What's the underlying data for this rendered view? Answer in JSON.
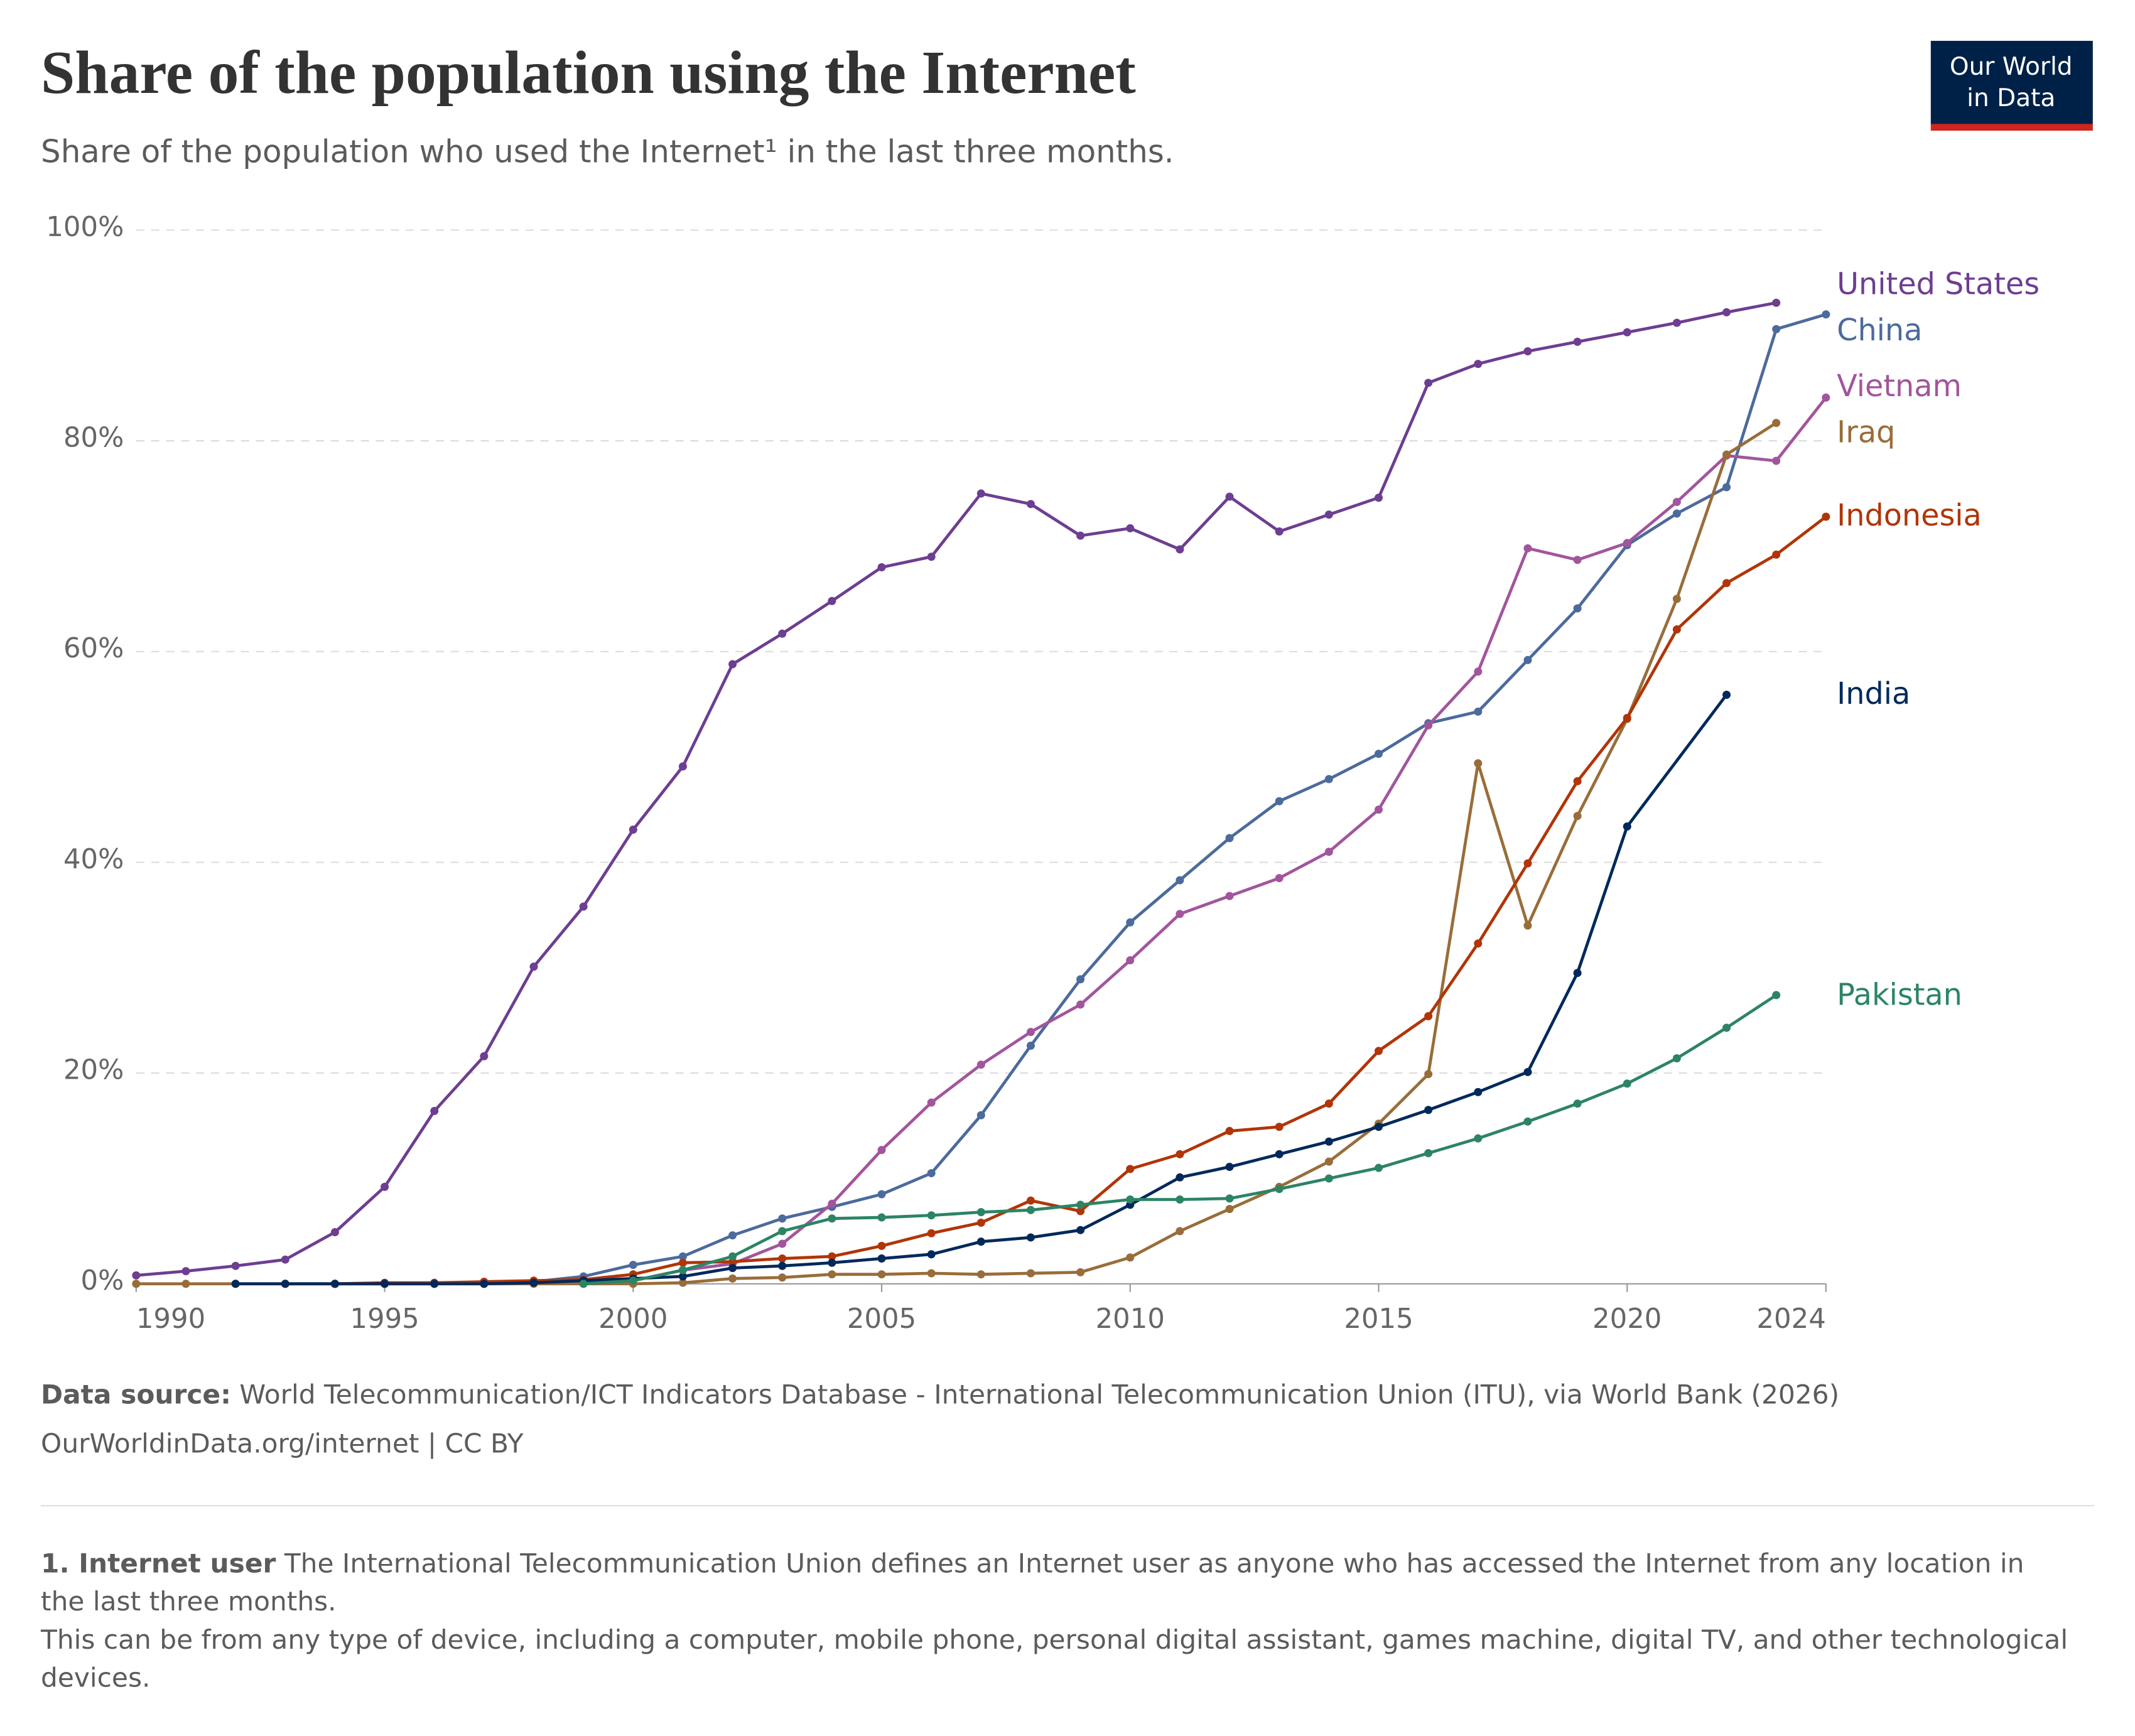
{
  "chart_data": {
    "type": "line",
    "title": "Share of the population using the Internet",
    "subtitle": "Share of the population who used the Internet¹ in the last three months.",
    "xlim": [
      1990,
      2024
    ],
    "xticks": [
      1990,
      1995,
      2000,
      2005,
      2010,
      2015,
      2020,
      2024
    ],
    "ylim": [
      0,
      100
    ],
    "yticks": [
      {
        "value": 0,
        "label": "0%"
      },
      {
        "value": 20,
        "label": "20%"
      },
      {
        "value": 40,
        "label": "40%"
      },
      {
        "value": 60,
        "label": "60%"
      },
      {
        "value": 80,
        "label": "80%"
      },
      {
        "value": 100,
        "label": "100%"
      }
    ],
    "grid": true,
    "series": [
      {
        "name": "United States",
        "color": "#6d3e91",
        "x": [
          1990,
          1991,
          1992,
          1993,
          1994,
          1995,
          1996,
          1997,
          1998,
          1999,
          2000,
          2001,
          2002,
          2003,
          2004,
          2005,
          2006,
          2007,
          2008,
          2009,
          2010,
          2011,
          2012,
          2013,
          2014,
          2015,
          2016,
          2017,
          2018,
          2019,
          2020,
          2021,
          2022,
          2023
        ],
        "values": [
          0.8,
          1.2,
          1.7,
          2.3,
          4.9,
          9.2,
          16.4,
          21.6,
          30.1,
          35.8,
          43.1,
          49.1,
          58.8,
          61.7,
          64.8,
          68,
          69,
          75,
          74,
          71,
          71.7,
          69.7,
          74.7,
          71.4,
          73,
          74.6,
          85.5,
          87.3,
          88.5,
          89.4,
          90.3,
          91.2,
          92.2,
          93.1
        ]
      },
      {
        "name": "China",
        "color": "#4c6a9c",
        "x": [
          1993,
          1994,
          1995,
          1996,
          1997,
          1998,
          1999,
          2000,
          2001,
          2002,
          2003,
          2004,
          2005,
          2006,
          2007,
          2008,
          2009,
          2010,
          2011,
          2012,
          2013,
          2014,
          2015,
          2016,
          2017,
          2018,
          2019,
          2020,
          2021,
          2022,
          2023,
          2024
        ],
        "values": [
          0,
          0,
          0,
          0,
          0.1,
          0.2,
          0.7,
          1.8,
          2.6,
          4.6,
          6.2,
          7.3,
          8.5,
          10.5,
          16,
          22.6,
          28.9,
          34.3,
          38.3,
          42.3,
          45.8,
          47.9,
          50.3,
          53.2,
          54.3,
          59.2,
          64.1,
          70.1,
          73.1,
          75.6,
          90.6,
          92
        ]
      },
      {
        "name": "Vietnam",
        "color": "#a2559c",
        "x": [
          1997,
          1998,
          1999,
          2000,
          2001,
          2002,
          2003,
          2004,
          2005,
          2006,
          2007,
          2008,
          2009,
          2010,
          2011,
          2012,
          2013,
          2014,
          2015,
          2016,
          2017,
          2018,
          2019,
          2020,
          2021,
          2022,
          2023,
          2024
        ],
        "values": [
          0,
          0.1,
          0.2,
          0.3,
          1.3,
          1.9,
          3.8,
          7.6,
          12.7,
          17.2,
          20.8,
          23.9,
          26.5,
          30.7,
          35.1,
          36.8,
          38.5,
          41,
          45,
          53,
          58.1,
          69.8,
          68.7,
          70.3,
          74.2,
          78.6,
          78.1,
          84.1
        ]
      },
      {
        "name": "Iraq",
        "color": "#996d39",
        "x": [
          1990,
          1991,
          1992,
          1993,
          1994,
          1995,
          1996,
          1997,
          1998,
          1999,
          2000,
          2001,
          2002,
          2003,
          2004,
          2005,
          2006,
          2007,
          2008,
          2009,
          2010,
          2011,
          2012,
          2013,
          2014,
          2015,
          2016,
          2017,
          2018,
          2019,
          2020,
          2021,
          2022,
          2023
        ],
        "values": [
          0,
          0,
          0,
          0,
          0,
          0,
          0,
          0,
          0,
          0,
          0,
          0.1,
          0.5,
          0.6,
          0.9,
          0.9,
          1,
          0.9,
          1,
          1.1,
          2.5,
          5,
          7.1,
          9.2,
          11.6,
          15.2,
          19.9,
          49.4,
          34,
          44.4,
          53.6,
          65,
          78.7,
          81.7
        ]
      },
      {
        "name": "Indonesia",
        "color": "#b13507",
        "x": [
          1994,
          1995,
          1996,
          1997,
          1998,
          1999,
          2000,
          2001,
          2002,
          2003,
          2004,
          2005,
          2006,
          2007,
          2008,
          2009,
          2010,
          2011,
          2012,
          2013,
          2014,
          2015,
          2016,
          2017,
          2018,
          2019,
          2020,
          2021,
          2022,
          2023,
          2024
        ],
        "values": [
          0,
          0.1,
          0.1,
          0.2,
          0.3,
          0.4,
          0.9,
          2,
          2.1,
          2.4,
          2.6,
          3.6,
          4.8,
          5.8,
          7.9,
          6.9,
          10.9,
          12.3,
          14.5,
          14.9,
          17.1,
          22.1,
          25.4,
          32.3,
          39.9,
          47.7,
          53.7,
          62.1,
          66.5,
          69.2,
          72.8
        ]
      },
      {
        "name": "India",
        "color": "#00295b",
        "x": [
          1992,
          1993,
          1994,
          1995,
          1996,
          1997,
          1998,
          1999,
          2000,
          2001,
          2002,
          2003,
          2004,
          2005,
          2006,
          2007,
          2008,
          2009,
          2010,
          2011,
          2012,
          2013,
          2014,
          2015,
          2016,
          2017,
          2018,
          2019,
          2020,
          2022
        ],
        "values": [
          0,
          0,
          0,
          0,
          0,
          0,
          0.1,
          0.3,
          0.5,
          0.7,
          1.5,
          1.7,
          2,
          2.4,
          2.8,
          4,
          4.4,
          5.1,
          7.5,
          10.1,
          11.1,
          12.3,
          13.5,
          14.9,
          16.5,
          18.2,
          20.1,
          29.5,
          43.4,
          55.9
        ]
      },
      {
        "name": "Pakistan",
        "color": "#2c8465",
        "x": [
          1999,
          2000,
          2001,
          2002,
          2003,
          2004,
          2005,
          2006,
          2007,
          2008,
          2009,
          2010,
          2011,
          2012,
          2013,
          2014,
          2015,
          2016,
          2017,
          2018,
          2019,
          2020,
          2021,
          2022,
          2023
        ],
        "values": [
          0,
          0.3,
          1.3,
          2.6,
          5,
          6.2,
          6.3,
          6.5,
          6.8,
          7,
          7.5,
          8,
          8,
          8.1,
          9,
          10,
          11,
          12.4,
          13.8,
          15.4,
          17.1,
          19,
          21.4,
          24.3,
          27.4
        ]
      }
    ]
  },
  "logo": [
    "Our World",
    "in Data"
  ],
  "source_label": "Data source:",
  "source": "World Telecommunication/ICT Indicators Database - International Telecommunication Union (ITU), via World Bank (2026)",
  "url_license": "OurWorldinData.org/internet | CC BY",
  "note_label": "1. Internet user",
  "note_text": "The International Telecommunication Union defines an Internet user as anyone who has accessed the Internet from any location in the last three months.",
  "note_text_2": "This can be from any type of device, including a computer, mobile phone, personal digital assistant, games machine, digital TV, and other technological devices."
}
